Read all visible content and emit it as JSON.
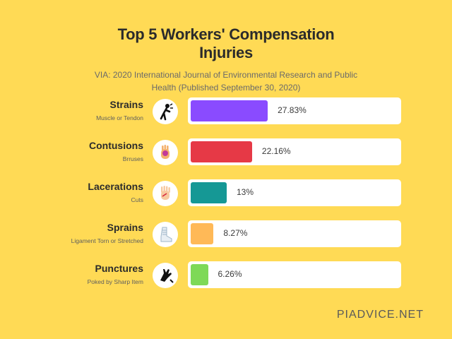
{
  "title_line1": "Top 5 Workers' Compensation",
  "title_line2": "Injuries",
  "subtitle_line1": "VIA: 2020 International Journal of Environmental Research and Public",
  "subtitle_line2": "Health (Published September 30, 2020)",
  "footer": "PIADVICE.NET",
  "chart_data": {
    "type": "bar",
    "orientation": "horizontal",
    "title": "Top 5 Workers' Compensation Injuries",
    "categories": [
      "Strains",
      "Contusions",
      "Lacerations",
      "Sprains",
      "Punctures"
    ],
    "subcategories": [
      "Muscle or Tendon",
      "Brruses",
      "Cuts",
      "Ligament Torn or Stretched",
      "Poked by Sharp  Item"
    ],
    "values": [
      27.83,
      22.16,
      13,
      8.27,
      6.26
    ],
    "value_labels": [
      "27.83%",
      "22.16%",
      "13%",
      "8.27%",
      "6.26%"
    ],
    "colors": [
      "#8A4BFF",
      "#E63946",
      "#159895",
      "#FFB957",
      "#7ED957"
    ],
    "icons": [
      "strained-back-icon",
      "bruised-hand-icon",
      "cut-hand-icon",
      "sprained-ankle-icon",
      "punctured-hand-icon"
    ],
    "xlim": [
      0,
      75
    ],
    "legend": "none",
    "grid": false
  }
}
